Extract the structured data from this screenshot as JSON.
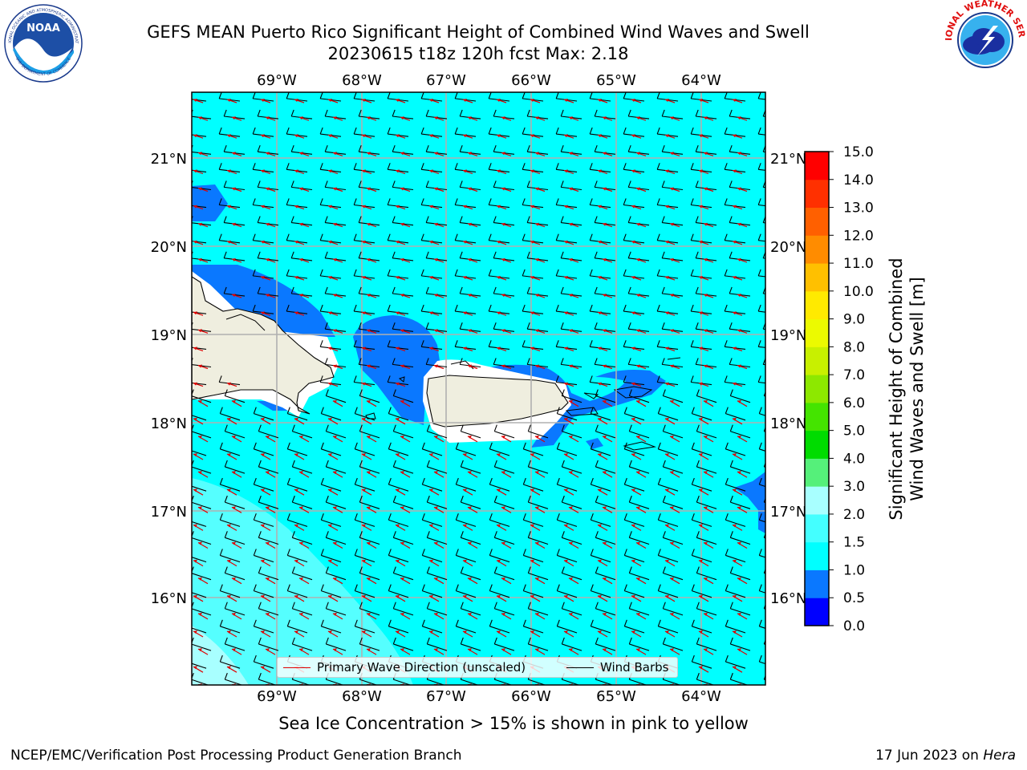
{
  "title": {
    "line1": "GEFS MEAN Puerto Rico Significant Height of Combined Wind Waves and Swell",
    "line2": "20230615 t18z 120h fcst   Max: 2.18"
  },
  "logos": {
    "left": "NOAA",
    "left_ring_top": "NATIONAL OCEANIC AND ATMOSPHERIC ADMINISTRATION",
    "left_ring_bottom": "U.S. DEPARTMENT OF COMMERCE",
    "right_ring": "NATIONAL WEATHER SERVICE"
  },
  "map": {
    "lon_labels": [
      "69°W",
      "68°W",
      "67°W",
      "66°W",
      "65°W",
      "64°W"
    ],
    "lat_labels": [
      "21°N",
      "20°N",
      "19°N",
      "18°N",
      "17°N",
      "16°N"
    ]
  },
  "legend": {
    "wave_dir": "Primary Wave Direction (unscaled)",
    "wind_barbs": "Wind Barbs",
    "wave_color": "#e00000",
    "barb_color": "#000000"
  },
  "colorbar": {
    "label_line1": "Significant Height of Combined",
    "label_line2": "Wind Waves and Swell [m]",
    "ticks": [
      "0.0",
      "0.5",
      "1.0",
      "1.5",
      "2.0",
      "3.0",
      "4.0",
      "5.0",
      "6.0",
      "7.0",
      "8.0",
      "9.0",
      "10.0",
      "11.0",
      "12.0",
      "13.0",
      "14.0",
      "15.0"
    ],
    "colors": [
      "#0000ff",
      "#0a78ff",
      "#00ffff",
      "#44ffff",
      "#a8ffff",
      "#55f07a",
      "#00dc00",
      "#44e400",
      "#8de800",
      "#c8f000",
      "#ecfa00",
      "#ffea00",
      "#ffc000",
      "#ff8c00",
      "#ff6000",
      "#ff3000",
      "#ff0000"
    ]
  },
  "note": "Sea Ice Concentration > 15% is shown in pink to yellow",
  "footer": {
    "left": "NCEP/EMC/Verification Post Processing Product Generation Branch",
    "right_prefix": "17 Jun 2023 on ",
    "right_machine": "Hera"
  }
}
